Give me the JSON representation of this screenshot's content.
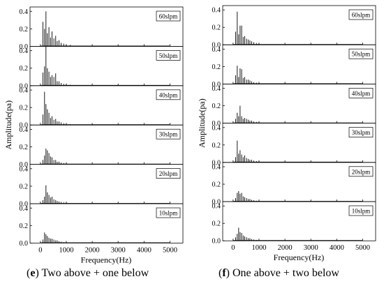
{
  "chart_data": [
    {
      "type": "line",
      "caption_letter": "e",
      "caption_text": "Two above + one below",
      "xlabel": "Frequency(Hz)",
      "ylabel": "Amplitude(pa)",
      "xlim": [
        -400,
        5500
      ],
      "x_ticks": [
        0,
        1000,
        2000,
        3000,
        4000,
        5000
      ],
      "ylim": [
        0,
        0.45
      ],
      "y_ticks": [
        0.0,
        0.2,
        0.4
      ],
      "grid": false,
      "series": [
        {
          "name": "60slpm",
          "peaks": [
            [
              100,
              0.28
            ],
            [
              160,
              0.2
            ],
            [
              215,
              0.4
            ],
            [
              270,
              0.15
            ],
            [
              330,
              0.22
            ],
            [
              390,
              0.1
            ],
            [
              450,
              0.17
            ],
            [
              520,
              0.09
            ],
            [
              590,
              0.12
            ],
            [
              650,
              0.06
            ],
            [
              720,
              0.07
            ],
            [
              800,
              0.04
            ],
            [
              900,
              0.03
            ],
            [
              1000,
              0.02
            ],
            [
              1150,
              0.015
            ]
          ]
        },
        {
          "name": "50slpm",
          "peaks": [
            [
              100,
              0.15
            ],
            [
              160,
              0.22
            ],
            [
              215,
              0.45
            ],
            [
              270,
              0.2
            ],
            [
              330,
              0.16
            ],
            [
              390,
              0.1
            ],
            [
              450,
              0.12
            ],
            [
              520,
              0.1
            ],
            [
              590,
              0.14
            ],
            [
              650,
              0.05
            ],
            [
              720,
              0.05
            ],
            [
              800,
              0.03
            ],
            [
              900,
              0.02
            ],
            [
              1000,
              0.015
            ],
            [
              1150,
              0.01
            ]
          ]
        },
        {
          "name": "40slpm",
          "peaks": [
            [
              100,
              0.12
            ],
            [
              160,
              0.38
            ],
            [
              215,
              0.24
            ],
            [
              270,
              0.18
            ],
            [
              330,
              0.14
            ],
            [
              390,
              0.08
            ],
            [
              450,
              0.1
            ],
            [
              520,
              0.06
            ],
            [
              590,
              0.07
            ],
            [
              650,
              0.04
            ],
            [
              720,
              0.04
            ],
            [
              800,
              0.03
            ],
            [
              900,
              0.02
            ],
            [
              1000,
              0.015
            ],
            [
              1150,
              0.01
            ]
          ]
        },
        {
          "name": "30slpm",
          "peaks": [
            [
              100,
              0.05
            ],
            [
              160,
              0.1
            ],
            [
              215,
              0.18
            ],
            [
              270,
              0.16
            ],
            [
              330,
              0.13
            ],
            [
              390,
              0.09
            ],
            [
              450,
              0.08
            ],
            [
              520,
              0.05
            ],
            [
              590,
              0.05
            ],
            [
              650,
              0.03
            ],
            [
              720,
              0.03
            ],
            [
              800,
              0.02
            ],
            [
              900,
              0.015
            ],
            [
              1000,
              0.01
            ]
          ]
        },
        {
          "name": "20slpm",
          "peaks": [
            [
              100,
              0.04
            ],
            [
              160,
              0.08
            ],
            [
              215,
              0.21
            ],
            [
              270,
              0.13
            ],
            [
              330,
              0.1
            ],
            [
              390,
              0.07
            ],
            [
              450,
              0.08
            ],
            [
              520,
              0.05
            ],
            [
              590,
              0.04
            ],
            [
              650,
              0.03
            ],
            [
              720,
              0.025
            ],
            [
              800,
              0.02
            ],
            [
              900,
              0.015
            ],
            [
              1000,
              0.01
            ]
          ]
        },
        {
          "name": "10slpm",
          "peaks": [
            [
              100,
              0.04
            ],
            [
              160,
              0.12
            ],
            [
              215,
              0.1
            ],
            [
              270,
              0.08
            ],
            [
              330,
              0.06
            ],
            [
              390,
              0.05
            ],
            [
              450,
              0.05
            ],
            [
              520,
              0.04
            ],
            [
              590,
              0.03
            ],
            [
              650,
              0.03
            ],
            [
              720,
              0.02
            ],
            [
              800,
              0.015
            ],
            [
              900,
              0.01
            ],
            [
              1000,
              0.008
            ]
          ]
        }
      ]
    },
    {
      "type": "line",
      "caption_letter": "f",
      "caption_text": "One above + two below",
      "xlabel": "Frequency(Hz)",
      "ylabel": "Amplitude(pa)",
      "xlim": [
        -400,
        5500
      ],
      "x_ticks": [
        0,
        1000,
        2000,
        3000,
        4000,
        5000
      ],
      "ylim": [
        0,
        0.45
      ],
      "y_ticks": [
        0.0,
        0.2,
        0.4
      ],
      "grid": false,
      "series": [
        {
          "name": "60slpm",
          "peaks": [
            [
              100,
              0.15
            ],
            [
              160,
              0.38
            ],
            [
              215,
              0.12
            ],
            [
              270,
              0.22
            ],
            [
              330,
              0.22
            ],
            [
              390,
              0.09
            ],
            [
              450,
              0.1
            ],
            [
              520,
              0.07
            ],
            [
              590,
              0.06
            ],
            [
              650,
              0.05
            ],
            [
              720,
              0.04
            ],
            [
              800,
              0.03
            ],
            [
              900,
              0.02
            ],
            [
              1000,
              0.015
            ]
          ]
        },
        {
          "name": "50slpm",
          "peaks": [
            [
              100,
              0.1
            ],
            [
              160,
              0.21
            ],
            [
              215,
              0.08
            ],
            [
              270,
              0.18
            ],
            [
              330,
              0.17
            ],
            [
              390,
              0.07
            ],
            [
              450,
              0.08
            ],
            [
              520,
              0.05
            ],
            [
              590,
              0.05
            ],
            [
              650,
              0.04
            ],
            [
              720,
              0.03
            ],
            [
              800,
              0.02
            ],
            [
              900,
              0.015
            ],
            [
              1000,
              0.01
            ]
          ]
        },
        {
          "name": "40slpm",
          "peaks": [
            [
              100,
              0.05
            ],
            [
              160,
              0.12
            ],
            [
              215,
              0.08
            ],
            [
              270,
              0.2
            ],
            [
              330,
              0.08
            ],
            [
              390,
              0.05
            ],
            [
              450,
              0.06
            ],
            [
              520,
              0.05
            ],
            [
              590,
              0.04
            ],
            [
              650,
              0.03
            ],
            [
              720,
              0.03
            ],
            [
              800,
              0.02
            ],
            [
              900,
              0.015
            ],
            [
              1000,
              0.01
            ]
          ]
        },
        {
          "name": "30slpm",
          "peaks": [
            [
              100,
              0.06
            ],
            [
              160,
              0.25
            ],
            [
              215,
              0.1
            ],
            [
              270,
              0.14
            ],
            [
              330,
              0.09
            ],
            [
              390,
              0.06
            ],
            [
              450,
              0.08
            ],
            [
              520,
              0.05
            ],
            [
              590,
              0.04
            ],
            [
              650,
              0.03
            ],
            [
              720,
              0.03
            ],
            [
              800,
              0.02
            ],
            [
              900,
              0.015
            ],
            [
              1000,
              0.01
            ]
          ]
        },
        {
          "name": "20slpm",
          "peaks": [
            [
              100,
              0.04
            ],
            [
              160,
              0.1
            ],
            [
              215,
              0.12
            ],
            [
              270,
              0.09
            ],
            [
              330,
              0.1
            ],
            [
              390,
              0.06
            ],
            [
              450,
              0.05
            ],
            [
              520,
              0.04
            ],
            [
              590,
              0.03
            ],
            [
              650,
              0.03
            ],
            [
              720,
              0.02
            ],
            [
              800,
              0.015
            ],
            [
              900,
              0.01
            ],
            [
              1000,
              0.008
            ]
          ]
        },
        {
          "name": "10slpm",
          "peaks": [
            [
              100,
              0.04
            ],
            [
              160,
              0.08
            ],
            [
              215,
              0.15
            ],
            [
              270,
              0.1
            ],
            [
              330,
              0.09
            ],
            [
              390,
              0.06
            ],
            [
              450,
              0.05
            ],
            [
              520,
              0.04
            ],
            [
              590,
              0.03
            ],
            [
              650,
              0.03
            ],
            [
              720,
              0.02
            ],
            [
              800,
              0.015
            ],
            [
              900,
              0.01
            ],
            [
              1000,
              0.008
            ]
          ]
        }
      ]
    }
  ]
}
